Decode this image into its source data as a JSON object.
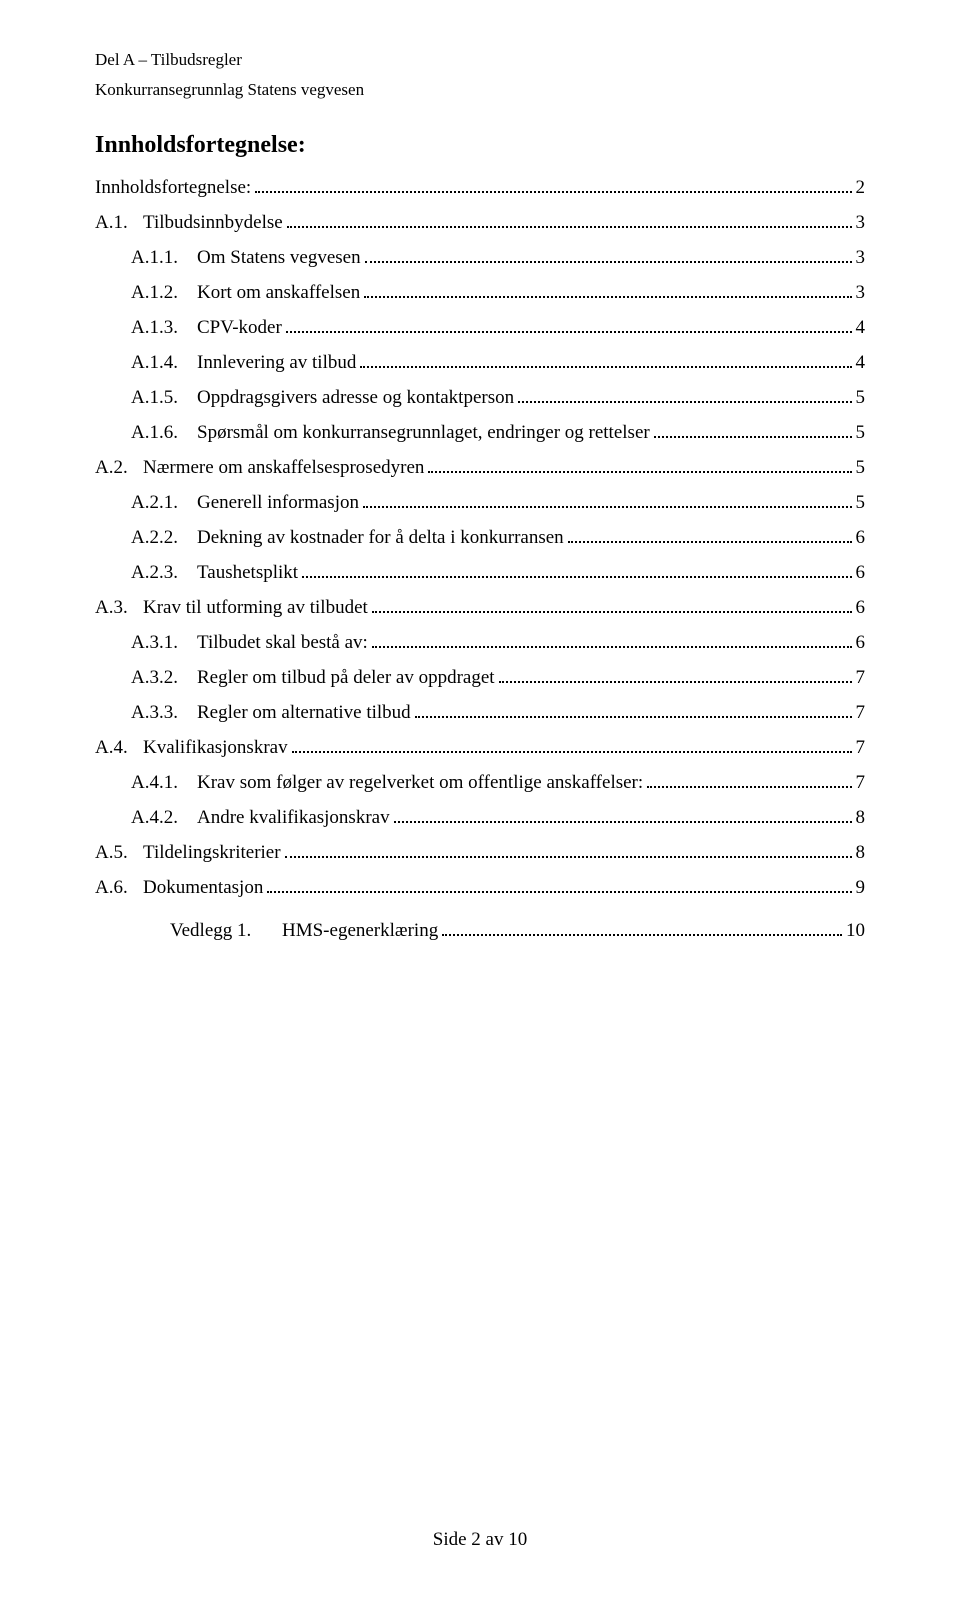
{
  "header": {
    "line1": "Del A – Tilbudsregler",
    "line2": "Konkurransegrunnlag Statens vegvesen"
  },
  "title": "Innholdsfortegnelse:",
  "toc": [
    {
      "level": 0,
      "num": "",
      "text": "Innholdsfortegnelse:",
      "page": "2",
      "no_num": true
    },
    {
      "level": 0,
      "num": "A.1.",
      "text": "Tilbudsinnbydelse",
      "page": "3"
    },
    {
      "level": 1,
      "num": "A.1.1.",
      "text": "Om Statens vegvesen",
      "page": "3"
    },
    {
      "level": 1,
      "num": "A.1.2.",
      "text": "Kort om anskaffelsen",
      "page": "3"
    },
    {
      "level": 1,
      "num": "A.1.3.",
      "text": "CPV-koder",
      "page": "4"
    },
    {
      "level": 1,
      "num": "A.1.4.",
      "text": "Innlevering av tilbud",
      "page": "4"
    },
    {
      "level": 1,
      "num": "A.1.5.",
      "text": "Oppdragsgivers adresse og kontaktperson",
      "page": "5"
    },
    {
      "level": 1,
      "num": "A.1.6.",
      "text": "Spørsmål om konkurransegrunnlaget, endringer og rettelser",
      "page": "5"
    },
    {
      "level": 0,
      "num": "A.2.",
      "text": "Nærmere om anskaffelsesprosedyren",
      "page": "5"
    },
    {
      "level": 1,
      "num": "A.2.1.",
      "text": "Generell informasjon",
      "page": "5"
    },
    {
      "level": 1,
      "num": "A.2.2.",
      "text": "Dekning av kostnader for å delta i konkurransen",
      "page": "6"
    },
    {
      "level": 1,
      "num": "A.2.3.",
      "text": "Taushetsplikt",
      "page": "6"
    },
    {
      "level": 0,
      "num": "A.3.",
      "text": "Krav til utforming av tilbudet",
      "page": "6"
    },
    {
      "level": 1,
      "num": "A.3.1.",
      "text": "Tilbudet skal bestå av:",
      "page": "6"
    },
    {
      "level": 1,
      "num": "A.3.2.",
      "text": "Regler om tilbud på deler av oppdraget",
      "page": "7"
    },
    {
      "level": 1,
      "num": "A.3.3.",
      "text": "Regler om alternative tilbud",
      "page": "7"
    },
    {
      "level": 0,
      "num": "A.4.",
      "text": "Kvalifikasjonskrav",
      "page": "7"
    },
    {
      "level": 1,
      "num": "A.4.1.",
      "text": "Krav som følger av regelverket om offentlige anskaffelser:",
      "page": "7"
    },
    {
      "level": 1,
      "num": "A.4.2.",
      "text": "Andre kvalifikasjonskrav",
      "page": "8"
    },
    {
      "level": 0,
      "num": "A.5.",
      "text": "Tildelingskriterier",
      "page": "8"
    },
    {
      "level": 0,
      "num": "A.6.",
      "text": "Dokumentasjon",
      "page": "9"
    },
    {
      "level": 2,
      "num": "Vedlegg 1.",
      "text": "HMS-egenerklæring",
      "page": "10",
      "vgap_before": true,
      "vedlegg": true
    }
  ],
  "footer": "Side 2 av 10"
}
